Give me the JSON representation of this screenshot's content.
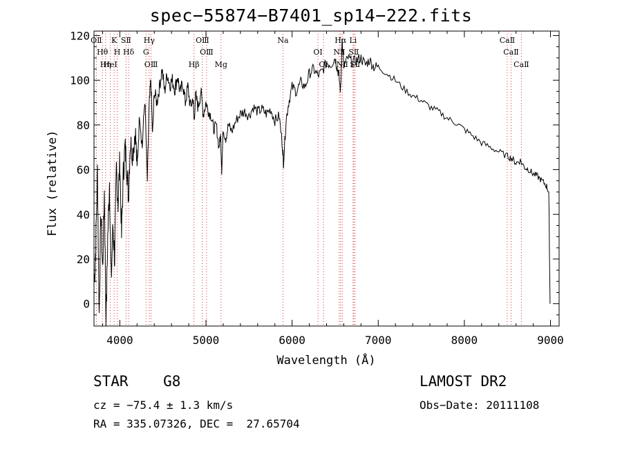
{
  "chart_data": {
    "type": "line",
    "title": "spec−55874−B7401_sp14−222.fits",
    "xlabel": "Wavelength (Å)",
    "ylabel": "Flux (relative)",
    "xlim": [
      3700,
      9100
    ],
    "ylim": [
      -10,
      122
    ],
    "xticks": [
      4000,
      5000,
      6000,
      7000,
      8000,
      9000
    ],
    "yticks": [
      0,
      20,
      40,
      60,
      80,
      100,
      120
    ],
    "grid": false,
    "color": "#000000",
    "series": [
      {
        "x": [
          3705,
          3720,
          3740,
          3760,
          3780,
          3800,
          3820,
          3840,
          3860,
          3880,
          3900,
          3920,
          3940,
          3960,
          3980,
          4000,
          4020,
          4040,
          4060,
          4080,
          4100,
          4120,
          4150,
          4180,
          4200,
          4230,
          4260,
          4290,
          4320,
          4340,
          4360,
          4380,
          4400,
          4430,
          4460,
          4490,
          4520,
          4550,
          4580,
          4610,
          4640,
          4670,
          4700,
          4730,
          4760,
          4790,
          4820,
          4850,
          4861,
          4880,
          4910,
          4940,
          4970,
          5000,
          5030,
          5060,
          5090,
          5120,
          5150,
          5170,
          5183,
          5200,
          5230,
          5260,
          5300,
          5350,
          5400,
          5450,
          5500,
          5550,
          5600,
          5650,
          5700,
          5750,
          5800,
          5850,
          5890,
          5900,
          5930,
          5960,
          6000,
          6050,
          6100,
          6150,
          6200,
          6250,
          6300,
          6350,
          6400,
          6450,
          6500,
          6520,
          6540,
          6563,
          6580,
          6600,
          6650,
          6700,
          6750,
          6800,
          6850,
          6900,
          6950,
          7000,
          7100,
          7200,
          7300,
          7400,
          7500,
          7600,
          7700,
          7800,
          7900,
          8000,
          8100,
          8200,
          8300,
          8400,
          8500,
          8550,
          8600,
          8650,
          8700,
          8750,
          8800,
          8850,
          8900,
          8950,
          8980,
          8995
        ],
        "y": [
          10,
          25,
          60,
          -5,
          40,
          15,
          50,
          -8,
          30,
          55,
          10,
          35,
          20,
          60,
          45,
          65,
          30,
          58,
          70,
          62,
          48,
          72,
          68,
          78,
          60,
          85,
          70,
          92,
          55,
          88,
          100,
          75,
          95,
          90,
          97,
          105,
          95,
          103,
          98,
          100,
          96,
          102,
          94,
          99,
          90,
          97,
          88,
          92,
          82,
          93,
          88,
          95,
          85,
          90,
          86,
          84,
          78,
          80,
          70,
          75,
          60,
          78,
          74,
          80,
          77,
          82,
          85,
          86,
          84,
          88,
          86,
          87,
          85,
          87,
          82,
          84,
          70,
          63,
          82,
          90,
          97,
          95,
          99,
          97,
          103,
          105,
          102,
          104,
          108,
          107,
          110,
          106,
          103,
          95,
          118,
          106,
          110,
          108,
          109,
          110,
          107,
          109,
          106,
          106,
          103,
          100,
          96,
          93,
          91,
          88,
          86,
          83,
          81,
          78,
          75,
          72,
          70,
          68,
          66,
          65,
          63,
          64,
          61,
          60,
          58,
          57,
          55,
          53,
          50,
          0
        ]
      }
    ],
    "markers": [
      {
        "label": "OⅡ",
        "x": 3727
      },
      {
        "label": "Hθ",
        "x": 3798
      },
      {
        "label": "Hη",
        "x": 3835
      },
      {
        "label": "K",
        "x": 3934
      },
      {
        "label": "H",
        "x": 3969
      },
      {
        "label": "HeI",
        "x": 3889
      },
      {
        "label": "SⅡ",
        "x": 4072
      },
      {
        "label": "Hδ",
        "x": 4102
      },
      {
        "label": "OⅢ",
        "x": 4363
      },
      {
        "label": "Hγ",
        "x": 4341
      },
      {
        "label": "G",
        "x": 4304
      },
      {
        "label": "Hβ",
        "x": 4861
      },
      {
        "label": "OⅢ",
        "x": 4959
      },
      {
        "label": "OⅢ",
        "x": 5007
      },
      {
        "label": "Mg",
        "x": 5175
      },
      {
        "label": "Na",
        "x": 5894
      },
      {
        "label": "OI",
        "x": 6300
      },
      {
        "label": "OI",
        "x": 6364
      },
      {
        "label": "Hα",
        "x": 6563
      },
      {
        "label": "NⅡ",
        "x": 6548
      },
      {
        "label": "NⅡ",
        "x": 6583
      },
      {
        "label": "Li",
        "x": 6708
      },
      {
        "label": "SⅡ",
        "x": 6716
      },
      {
        "label": "SⅡ",
        "x": 6731
      },
      {
        "label": "CaⅡ",
        "x": 8498
      },
      {
        "label": "CaⅡ",
        "x": 8542
      },
      {
        "label": "CaⅡ",
        "x": 8662
      }
    ]
  },
  "footer": {
    "class_label": "STAR    G8",
    "survey": "LAMOST DR2",
    "cz": "cz = −75.4 ± 1.3 km/s",
    "obs_date": "Obs−Date: 20111108",
    "radec": "RA = 335.07326, DEC =  27.65704"
  }
}
